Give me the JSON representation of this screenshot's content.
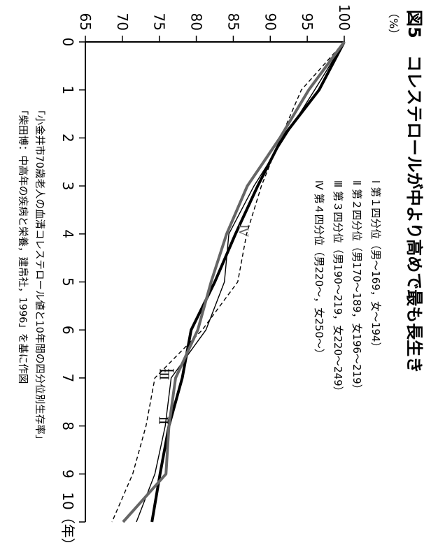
{
  "title": "図5　コレステロールが中より高めで最も長生き",
  "y_unit": "（%）",
  "legend": [
    "Ⅰ 第１四分位（男〜169，女〜194）",
    "Ⅱ 第２四分位（男170〜189，女196〜219）",
    "Ⅲ 第３四分位（男190〜219，女220〜249）",
    "Ⅳ 第４四分位（男220〜，女250〜）"
  ],
  "source": [
    "「小金井市70歳老人の血清コレステロール値と10年間の四分位別生存率」",
    "「柴田博：中高年の疾病と栄養，建帛社，1996」を基に作図"
  ],
  "chart_data": {
    "type": "line",
    "x": [
      0,
      1,
      2,
      3,
      4,
      5,
      6,
      7,
      8,
      9,
      10
    ],
    "x_tick_labels": [
      "0",
      "1",
      "2",
      "3",
      "4",
      "5",
      "6",
      "7",
      "8",
      "9",
      "10（年）"
    ],
    "ylim": [
      65,
      100
    ],
    "y_ticks": [
      65,
      70,
      75,
      80,
      85,
      90,
      95,
      100
    ],
    "grid": false,
    "series": [
      {
        "name": "Ⅰ",
        "values": [
          100,
          94.2,
          91.4,
          88.8,
          86.8,
          85.6,
          80.8,
          74.4,
          73.2,
          71.4,
          68.6
        ],
        "color": "#000000",
        "style": "dashed"
      },
      {
        "name": "Ⅱ",
        "values": [
          100,
          96.6,
          91.6,
          88.3,
          85.3,
          82.5,
          79.3,
          78.1,
          76.3,
          75.1,
          74.0
        ],
        "color": "#000000",
        "style": "thick"
      },
      {
        "name": "Ⅲ",
        "values": [
          100,
          96.0,
          91.9,
          87.8,
          84.4,
          83.8,
          81.3,
          76.6,
          75.8,
          74.4,
          71.9
        ],
        "color": "#000000",
        "style": "thin"
      },
      {
        "name": "Ⅳ",
        "values": [
          100,
          95.2,
          91.3,
          86.9,
          84.1,
          82.0,
          80.2,
          77.2,
          76.3,
          75.9,
          70.1
        ],
        "color": "#666666",
        "style": "thick"
      }
    ]
  }
}
